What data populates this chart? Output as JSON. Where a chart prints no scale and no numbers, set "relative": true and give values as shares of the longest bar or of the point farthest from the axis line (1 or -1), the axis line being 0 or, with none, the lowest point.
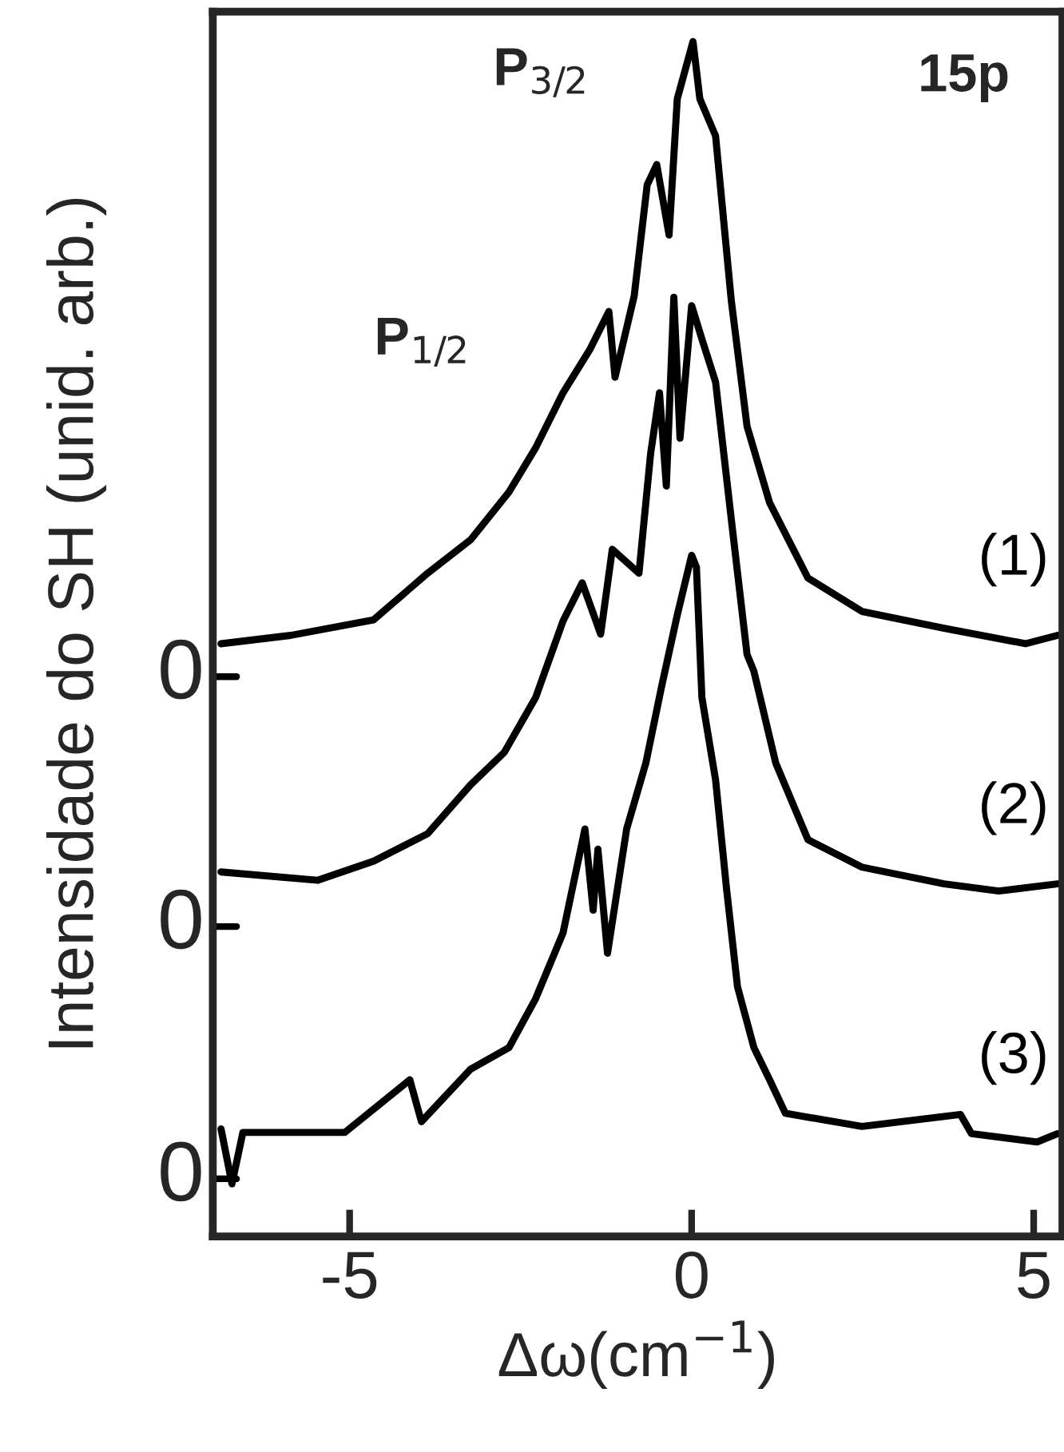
{
  "chart_data": {
    "type": "line",
    "relative": true,
    "xlabel": "Δω(cm$^{−1}$)",
    "ylabel": "Intensidade do SH (unid. arb.)",
    "annotations": [
      "P$_{3/2}$",
      "P$_{1/2}$",
      "15p",
      "0",
      "0",
      "0"
    ],
    "xlim": [
      -7,
      5.42
    ],
    "xticks": [
      -5,
      0,
      5
    ],
    "grid": false,
    "legend": false,
    "line_style": "solid",
    "marker": "none",
    "series": [
      {
        "name": "(1)",
        "color": "#000000",
        "x": [
          -6.88,
          -5.86,
          -4.65,
          -3.86,
          -3.23,
          -2.67,
          -2.28,
          -1.88,
          -1.49,
          -1.21,
          -1.12,
          -0.84,
          -0.65,
          -0.51,
          -0.33,
          -0.21,
          0.02,
          0.12,
          0.35,
          0.58,
          0.81,
          1.14,
          1.7,
          2.49,
          3.69,
          4.88,
          5.35
        ],
        "values": [
          0.496,
          0.503,
          0.516,
          0.555,
          0.583,
          0.623,
          0.66,
          0.706,
          0.742,
          0.774,
          0.719,
          0.787,
          0.88,
          0.897,
          0.838,
          0.952,
          1.0,
          0.952,
          0.921,
          0.783,
          0.678,
          0.614,
          0.551,
          0.523,
          0.509,
          0.496,
          0.503
        ]
      },
      {
        "name": "(2)",
        "color": "#000000",
        "x": [
          -6.88,
          -5.47,
          -4.65,
          -3.86,
          -3.23,
          -2.74,
          -2.28,
          -1.88,
          -1.6,
          -1.33,
          -1.16,
          -0.77,
          -0.6,
          -0.47,
          -0.37,
          -0.26,
          -0.17,
          0.0,
          0.15,
          0.35,
          0.58,
          0.81,
          0.91,
          1.23,
          1.7,
          2.49,
          3.69,
          4.49,
          5.35
        ],
        "values": [
          0.305,
          0.298,
          0.314,
          0.337,
          0.378,
          0.405,
          0.451,
          0.515,
          0.547,
          0.504,
          0.575,
          0.555,
          0.655,
          0.706,
          0.628,
          0.786,
          0.668,
          0.779,
          0.751,
          0.715,
          0.6,
          0.487,
          0.473,
          0.396,
          0.332,
          0.309,
          0.295,
          0.289,
          0.295
        ]
      },
      {
        "name": "(3)",
        "color": "#000000",
        "x": [
          -6.88,
          -6.72,
          -6.56,
          -5.07,
          -4.12,
          -3.95,
          -3.23,
          -2.67,
          -2.28,
          -1.88,
          -1.56,
          -1.44,
          -1.37,
          -1.23,
          -0.95,
          -0.67,
          -0.44,
          -0.21,
          0.0,
          0.07,
          0.15,
          0.35,
          0.51,
          0.67,
          0.91,
          1.14,
          1.37,
          2.49,
          3.93,
          4.09,
          5.05,
          5.35
        ],
        "values": [
          0.09,
          0.044,
          0.087,
          0.087,
          0.131,
          0.096,
          0.14,
          0.158,
          0.199,
          0.254,
          0.341,
          0.273,
          0.324,
          0.237,
          0.341,
          0.396,
          0.46,
          0.52,
          0.57,
          0.56,
          0.451,
          0.382,
          0.291,
          0.209,
          0.158,
          0.131,
          0.103,
          0.092,
          0.102,
          0.086,
          0.079,
          0.086
        ]
      }
    ]
  }
}
